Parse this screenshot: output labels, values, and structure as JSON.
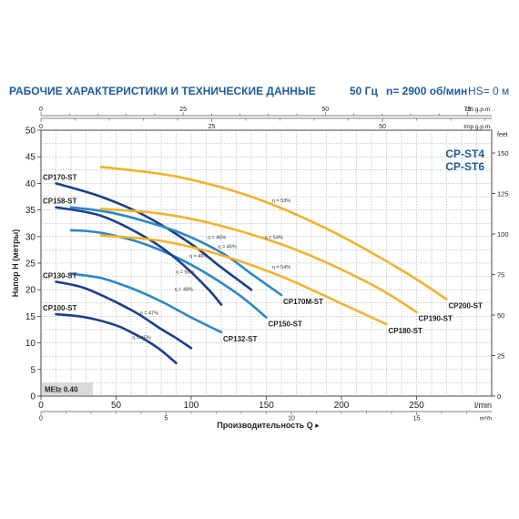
{
  "header": {
    "title": "РАБОЧИЕ ХАРАКТЕРИСТИКИ И ТЕХНИЧЕСКИЕ ДАННЫЕ",
    "frequency": "50 Гц",
    "speed": "n= 2900 об/мин",
    "hs": "HS= 0 м"
  },
  "chart_data": {
    "type": "line",
    "title": "CP-ST4 CP-ST6",
    "title_lines": [
      "CP-ST4",
      "CP-ST6"
    ],
    "xlabel": "Производительность Q",
    "ylabel": "Напор H (метры)",
    "xlim": [
      0,
      300
    ],
    "ylim": [
      0,
      50
    ],
    "x_unit": "l/min",
    "grid": true,
    "mei_label": "MEI≥ 0.40",
    "axes": {
      "lmin_ticks": [
        "0",
        "50",
        "100",
        "150",
        "200",
        "250"
      ],
      "lmin_unit": "l/min",
      "m3h_ticks": [
        "0",
        "5",
        "10",
        "15"
      ],
      "m3h_unit": "m³/h",
      "usgpm_ticks": [
        "0",
        "25",
        "50",
        "75"
      ],
      "usgpm_unit": "US g.p.m.",
      "impgpm_ticks": [
        "0",
        "25",
        "50"
      ],
      "impgpm_unit": "Imp g.p.m.",
      "h_ticks": [
        "0",
        "5",
        "10",
        "15",
        "20",
        "25",
        "30",
        "35",
        "40",
        "45",
        "50"
      ],
      "feet_ticks": [
        "0",
        "25",
        "50",
        "75",
        "100",
        "125",
        "150"
      ],
      "feet_unit": "feet"
    },
    "series": [
      {
        "name": "CP100-ST",
        "color": "#1b3f8b",
        "x": [
          10,
          30,
          50,
          60,
          70,
          80,
          90
        ],
        "y": [
          15.4,
          14.8,
          13.3,
          12.0,
          10.5,
          8.6,
          6.2
        ]
      },
      {
        "name": "CP130-ST",
        "color": "#1b3f8b",
        "x": [
          10,
          30,
          60,
          80,
          90,
          100
        ],
        "y": [
          21.5,
          20.2,
          16.2,
          12.6,
          10.9,
          9.0
        ]
      },
      {
        "name": "CP132-ST",
        "color": "#2a88c6",
        "x": [
          20,
          40,
          60,
          80,
          100,
          120
        ],
        "y": [
          23.0,
          22.2,
          20.3,
          17.8,
          14.8,
          12.0
        ]
      },
      {
        "name": "CP150-ST",
        "color": "#2a88c6",
        "x": [
          20,
          40,
          70,
          100,
          130,
          150
        ],
        "y": [
          31.2,
          30.7,
          28.5,
          24.7,
          19.4,
          14.8
        ]
      },
      {
        "name": "CP158-ST",
        "color": "#1b3f8b",
        "x": [
          10,
          40,
          70,
          90,
          110,
          120
        ],
        "y": [
          35.5,
          33.9,
          29.8,
          25.8,
          20.5,
          17.2
        ]
      },
      {
        "name": "CP170-ST",
        "color": "#1b3f8b",
        "x": [
          10,
          40,
          70,
          100,
          120,
          140
        ],
        "y": [
          40.0,
          37.5,
          33.8,
          28.6,
          24.2,
          20.0
        ]
      },
      {
        "name": "CP170M-ST",
        "color": "#2a88c6",
        "x": [
          20,
          50,
          90,
          120,
          140,
          160
        ],
        "y": [
          35.5,
          34.3,
          31.0,
          27.0,
          23.0,
          19.0
        ]
      },
      {
        "name": "CP180-ST",
        "color": "#f2b22b",
        "x": [
          40,
          80,
          120,
          160,
          200,
          230
        ],
        "y": [
          30.2,
          29.2,
          26.5,
          22.5,
          17.4,
          13.5
        ]
      },
      {
        "name": "CP190-ST",
        "color": "#f2b22b",
        "x": [
          40,
          80,
          120,
          170,
          220,
          250
        ],
        "y": [
          35.2,
          34.3,
          32.0,
          27.5,
          21.0,
          15.8
        ]
      },
      {
        "name": "CP200-ST",
        "color": "#f2b22b",
        "x": [
          40,
          90,
          140,
          190,
          240,
          270
        ],
        "y": [
          43.1,
          41.3,
          37.5,
          31.5,
          23.7,
          18.2
        ]
      }
    ],
    "efficiency_labels": [
      {
        "text": "η = 45%",
        "x": 67,
        "y": 10.7
      },
      {
        "text": "η = 47%",
        "x": 72,
        "y": 15.3
      },
      {
        "text": "η = 48%",
        "x": 95,
        "y": 19.8
      },
      {
        "text": "η = 50%",
        "x": 96,
        "y": 23.0
      },
      {
        "text": "η = 46%",
        "x": 105,
        "y": 26.0
      },
      {
        "text": "η = 46%",
        "x": 124,
        "y": 27.8
      },
      {
        "text": "η = 45%",
        "x": 117,
        "y": 29.5
      },
      {
        "text": "η = 54%",
        "x": 160,
        "y": 24.0
      },
      {
        "text": "η = 54%",
        "x": 155,
        "y": 29.5
      },
      {
        "text": "η = 53%",
        "x": 160,
        "y": 36.5
      }
    ]
  }
}
